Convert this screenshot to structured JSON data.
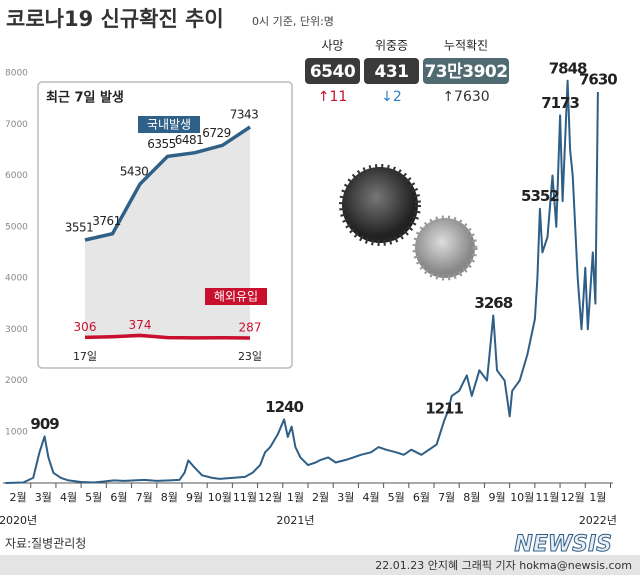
{
  "chart_data": [
    {
      "type": "line",
      "title": "코로나19 신규확진 추이",
      "subtitle": "0시 기준, 단위:명",
      "xlim": [
        -0.6,
        23.6
      ],
      "xticks": [
        {
          "value": 0,
          "label": "2월"
        },
        {
          "value": 1,
          "label": "3월"
        },
        {
          "value": 2,
          "label": "4월"
        },
        {
          "value": 3,
          "label": "5월"
        },
        {
          "value": 4,
          "label": "6월"
        },
        {
          "value": 5,
          "label": "7월"
        },
        {
          "value": 6,
          "label": "8월"
        },
        {
          "value": 7,
          "label": "9월"
        },
        {
          "value": 8,
          "label": "10월"
        },
        {
          "value": 9,
          "label": "11월"
        },
        {
          "value": 10,
          "label": "12월"
        },
        {
          "value": 11,
          "label": "1월"
        },
        {
          "value": 12,
          "label": "2월"
        },
        {
          "value": 13,
          "label": "3월"
        },
        {
          "value": 14,
          "label": "4월"
        },
        {
          "value": 15,
          "label": "5월"
        },
        {
          "value": 16,
          "label": "6월"
        },
        {
          "value": 17,
          "label": "7월"
        },
        {
          "value": 18,
          "label": "8월"
        },
        {
          "value": 19,
          "label": "9월"
        },
        {
          "value": 20,
          "label": "10월"
        },
        {
          "value": 21,
          "label": "11월"
        },
        {
          "value": 22,
          "label": "12월"
        },
        {
          "value": 23,
          "label": "1월"
        }
      ],
      "year_labels": [
        {
          "value": 0,
          "label": "2020년"
        },
        {
          "value": 11,
          "label": "2021년"
        },
        {
          "value": 23,
          "label": "2022년"
        }
      ],
      "ylim": [
        0,
        8000
      ],
      "yticks": [
        1000,
        2000,
        3000,
        4000,
        5000,
        6000,
        7000,
        8000
      ],
      "grid": false,
      "series": [
        {
          "name": null,
          "color": "#2f5f86",
          "x": [
            -0.5,
            0.2,
            0.6,
            0.85,
            1.05,
            1.2,
            1.4,
            1.7,
            2.0,
            2.5,
            3.0,
            3.4,
            3.8,
            4.2,
            4.6,
            5.0,
            5.5,
            6.0,
            6.4,
            6.6,
            6.75,
            7.0,
            7.3,
            7.7,
            8.0,
            8.5,
            9.0,
            9.3,
            9.6,
            9.8,
            10.0,
            10.3,
            10.55,
            10.7,
            10.85,
            11.0,
            11.2,
            11.5,
            11.8,
            12.0,
            12.3,
            12.6,
            13.0,
            13.3,
            13.6,
            14.0,
            14.3,
            14.6,
            15.0,
            15.3,
            15.6,
            16.0,
            16.3,
            16.6,
            16.9,
            17.05,
            17.2,
            17.5,
            17.8,
            18.0,
            18.3,
            18.6,
            18.85,
            19.0,
            19.3,
            19.5,
            19.6,
            19.9,
            20.2,
            20.5,
            20.6,
            20.7,
            20.8,
            21.0,
            21.2,
            21.35,
            21.5,
            21.6,
            21.8,
            21.9,
            22.0,
            22.2,
            22.35,
            22.5,
            22.6,
            22.8,
            22.9,
            23.0
          ],
          "values": [
            0,
            10,
            100,
            600,
            909,
            500,
            200,
            100,
            50,
            20,
            10,
            30,
            50,
            40,
            50,
            60,
            40,
            50,
            60,
            200,
            440,
            300,
            150,
            100,
            80,
            100,
            120,
            200,
            350,
            600,
            700,
            950,
            1240,
            900,
            1100,
            700,
            500,
            350,
            400,
            450,
            500,
            400,
            450,
            500,
            550,
            600,
            700,
            650,
            600,
            550,
            650,
            550,
            650,
            750,
            1211,
            1400,
            1700,
            1800,
            2100,
            1700,
            2200,
            2000,
            3268,
            2200,
            2000,
            1300,
            1800,
            2000,
            2500,
            3200,
            4000,
            5352,
            4500,
            4800,
            6000,
            5000,
            7173,
            5500,
            7848,
            6500,
            6000,
            4000,
            3000,
            4200,
            3000,
            4500,
            3500,
            7630
          ],
          "value_labels": [
            null,
            null,
            null,
            null,
            "909",
            null,
            null,
            null,
            null,
            null,
            null,
            null,
            null,
            null,
            null,
            null,
            null,
            null,
            null,
            null,
            null,
            null,
            null,
            null,
            null,
            null,
            null,
            null,
            null,
            null,
            null,
            null,
            "1240",
            null,
            null,
            null,
            null,
            null,
            null,
            null,
            null,
            null,
            null,
            null,
            null,
            null,
            null,
            null,
            null,
            null,
            null,
            null,
            null,
            null,
            "1211",
            null,
            null,
            null,
            null,
            null,
            null,
            null,
            "3268",
            null,
            null,
            null,
            null,
            null,
            null,
            null,
            null,
            "5352",
            null,
            null,
            null,
            null,
            "7173",
            null,
            "7848",
            null,
            null,
            null,
            null,
            null,
            null,
            null,
            null,
            "7630"
          ]
        }
      ]
    },
    {
      "type": "line",
      "title": "최근 7일 발생",
      "categories": [
        "17일",
        null,
        null,
        null,
        null,
        null,
        "23일"
      ],
      "series": [
        {
          "name": "국내발생",
          "color": "#2f6088",
          "values": [
            3551,
            3761,
            5430,
            6355,
            6481,
            6729,
            7343
          ]
        },
        {
          "name": "해외유입",
          "color": "#c8102e",
          "values": [
            306,
            330,
            374,
            300,
            290,
            295,
            287
          ],
          "value_labels": [
            "306",
            null,
            "374",
            null,
            null,
            null,
            "287"
          ]
        }
      ]
    }
  ],
  "stats": [
    {
      "label": "사망",
      "value": "6540",
      "change": "↑11"
    },
    {
      "label": "위중증",
      "value": "431",
      "change": "↓2"
    },
    {
      "label": "누적확진",
      "value": "73만3902",
      "change": "↑7630"
    }
  ],
  "source": "자료:질병관리청",
  "credit": "22.01.23 안지혜 그래픽 기자 hokma@newsis.com",
  "logo": "NEWSIS"
}
